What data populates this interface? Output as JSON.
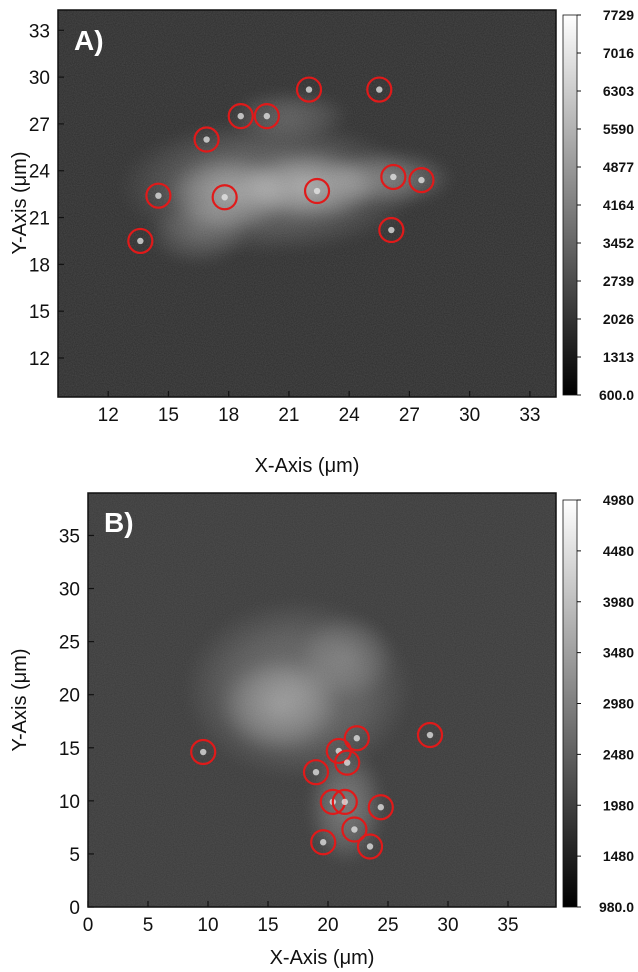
{
  "chart_data": [
    {
      "type": "heatmap",
      "panel_label": "A)",
      "xlabel": "X-Axis (μm)",
      "ylabel": "Y-Axis (μm)",
      "xlim": [
        9.5,
        34.3
      ],
      "ylim": [
        9.5,
        34.3
      ],
      "x_ticks": [
        "12",
        "15",
        "18",
        "21",
        "24",
        "27",
        "30",
        "33"
      ],
      "y_ticks": [
        "12",
        "15",
        "18",
        "21",
        "24",
        "27",
        "30",
        "33"
      ],
      "colorbar": {
        "min": 600.0,
        "max": 7729,
        "tick_labels": [
          "7729",
          "7016",
          "6303",
          "5590",
          "4877",
          "4164",
          "3452",
          "2739",
          "2026",
          "1313",
          "600.0"
        ],
        "colormap": "grayscale",
        "low_color": "#000000",
        "high_color": "#ffffff"
      },
      "background_color": "#2d2d2d",
      "circle_color": "#e01a1a",
      "blobs": [
        {
          "x": 20.0,
          "y": 23.0,
          "rx": 7.5,
          "ry": 4.3,
          "level": 0.3
        },
        {
          "x": 22.0,
          "y": 23.0,
          "rx": 3.5,
          "ry": 2.2,
          "level": 0.45
        },
        {
          "x": 18.0,
          "y": 22.5,
          "rx": 3.0,
          "ry": 2.5,
          "level": 0.4
        },
        {
          "x": 26.0,
          "y": 23.5,
          "rx": 3.2,
          "ry": 1.8,
          "level": 0.3
        },
        {
          "x": 21.0,
          "y": 27.5,
          "rx": 3.0,
          "ry": 1.6,
          "level": 0.22
        },
        {
          "x": 16.5,
          "y": 20.0,
          "rx": 2.5,
          "ry": 2.0,
          "level": 0.22
        }
      ],
      "circles": [
        {
          "x": 22.0,
          "y": 29.2
        },
        {
          "x": 25.5,
          "y": 29.2
        },
        {
          "x": 18.6,
          "y": 27.5
        },
        {
          "x": 19.9,
          "y": 27.5
        },
        {
          "x": 16.9,
          "y": 26.0
        },
        {
          "x": 14.5,
          "y": 22.4
        },
        {
          "x": 17.8,
          "y": 22.3
        },
        {
          "x": 22.4,
          "y": 22.7
        },
        {
          "x": 26.2,
          "y": 23.6
        },
        {
          "x": 27.6,
          "y": 23.4
        },
        {
          "x": 26.1,
          "y": 20.2
        },
        {
          "x": 13.6,
          "y": 19.5
        }
      ]
    },
    {
      "type": "heatmap",
      "panel_label": "B)",
      "xlabel": "X-Axis (μm)",
      "ylabel": "Y-Axis (μm)",
      "xlim": [
        0,
        39
      ],
      "ylim": [
        0,
        39
      ],
      "x_ticks": [
        "0",
        "5",
        "10",
        "15",
        "20",
        "25",
        "30",
        "35"
      ],
      "y_ticks": [
        "0",
        "5",
        "10",
        "15",
        "20",
        "25",
        "30",
        "35"
      ],
      "colorbar": {
        "min": 980.0,
        "max": 4980,
        "tick_labels": [
          "4980",
          "4480",
          "3980",
          "3480",
          "2980",
          "2480",
          "1980",
          "1480",
          "980.0"
        ],
        "colormap": "grayscale",
        "low_color": "#000000",
        "high_color": "#ffffff"
      },
      "background_color": "#3a3a3a",
      "circle_color": "#e01a1a",
      "blobs": [
        {
          "x": 17.5,
          "y": 20.5,
          "rx": 9.5,
          "ry": 8.5,
          "level": 0.28
        },
        {
          "x": 16.0,
          "y": 19.0,
          "rx": 5.0,
          "ry": 4.5,
          "level": 0.32
        },
        {
          "x": 21.5,
          "y": 9.5,
          "rx": 3.2,
          "ry": 5.5,
          "level": 0.3
        },
        {
          "x": 21.5,
          "y": 23.5,
          "rx": 4.0,
          "ry": 4.0,
          "level": 0.2
        }
      ],
      "circles": [
        {
          "x": 9.6,
          "y": 14.6
        },
        {
          "x": 22.4,
          "y": 15.9
        },
        {
          "x": 28.5,
          "y": 16.2
        },
        {
          "x": 20.9,
          "y": 14.7
        },
        {
          "x": 21.6,
          "y": 13.6
        },
        {
          "x": 19.0,
          "y": 12.7
        },
        {
          "x": 20.4,
          "y": 9.9
        },
        {
          "x": 21.4,
          "y": 9.9
        },
        {
          "x": 24.4,
          "y": 9.4
        },
        {
          "x": 22.2,
          "y": 7.3
        },
        {
          "x": 19.6,
          "y": 6.1
        },
        {
          "x": 23.5,
          "y": 5.7
        }
      ]
    }
  ]
}
